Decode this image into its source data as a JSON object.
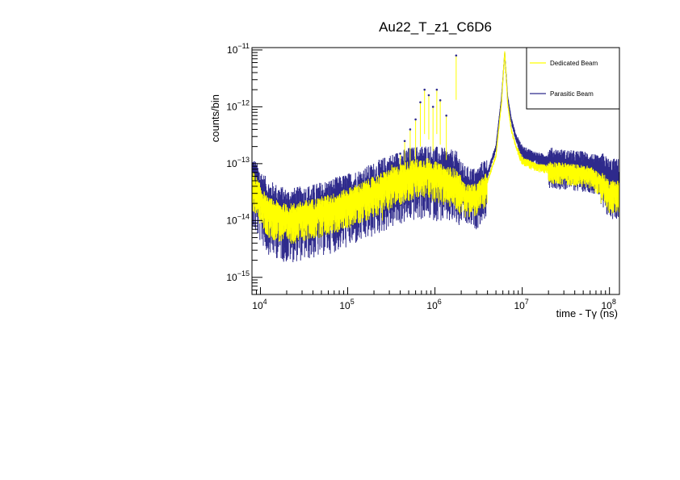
{
  "chart_data": {
    "type": "line",
    "title": "Au22_T_z1_C6D6",
    "xlabel": "time - Tγ (ns)",
    "ylabel": "counts/bin",
    "xscale": "log",
    "yscale": "log",
    "xlim": [
      8000,
      130000000
    ],
    "ylim": [
      5e-16,
      1.1e-11
    ],
    "grid": false,
    "legend_position": "top-right",
    "x_ticks": [
      {
        "value": 10000,
        "base": "10",
        "exp": "4"
      },
      {
        "value": 100000,
        "base": "10",
        "exp": "5"
      },
      {
        "value": 1000000,
        "base": "10",
        "exp": "6"
      },
      {
        "value": 10000000,
        "base": "10",
        "exp": "7"
      },
      {
        "value": 100000000,
        "base": "10",
        "exp": "8"
      }
    ],
    "y_ticks": [
      {
        "value": 1e-15,
        "base": "10",
        "exp": "−15"
      },
      {
        "value": 1e-14,
        "base": "10",
        "exp": "−14"
      },
      {
        "value": 1e-13,
        "base": "10",
        "exp": "−13"
      },
      {
        "value": 1e-12,
        "base": "10",
        "exp": "−12"
      },
      {
        "value": 1e-11,
        "base": "10",
        "exp": "−11"
      }
    ],
    "series": [
      {
        "name": "Parasitic Beam",
        "color": "#2e2a8c",
        "x": [
          8000,
          12000,
          20000,
          40000,
          80000,
          150000,
          300000,
          500000,
          800000,
          1200000,
          1750000,
          2200000,
          3000000,
          4000000,
          5000000,
          5800000,
          6300000,
          6800000,
          7500000,
          8500000,
          10000000,
          15000000,
          30000000,
          60000000,
          80000000,
          100000000
        ],
        "values": [
          6e-14,
          2.2e-14,
          1.5e-14,
          1.8e-14,
          2.5e-14,
          3.5e-14,
          6e-14,
          8e-14,
          9e-14,
          8e-14,
          7e-14,
          4.5e-14,
          4e-14,
          7e-14,
          2e-13,
          1.5e-12,
          9e-12,
          1.5e-12,
          6e-13,
          3e-13,
          1.7e-13,
          1.3e-13,
          1.1e-13,
          1e-13,
          8e-14,
          6e-14
        ]
      },
      {
        "name": "Dedicated Beam",
        "color": "#ffff00",
        "x": [
          8000,
          12000,
          20000,
          40000,
          80000,
          150000,
          300000,
          500000,
          800000,
          1200000,
          1750000,
          2200000,
          3000000,
          4000000,
          5000000,
          5800000,
          6300000,
          6800000,
          7500000,
          8500000,
          10000000,
          15000000,
          30000000,
          60000000,
          80000000,
          100000000
        ],
        "values": [
          5e-14,
          1.6e-14,
          1.2e-14,
          1.5e-14,
          2e-14,
          3e-14,
          5e-14,
          7e-14,
          8e-14,
          6e-14,
          5e-14,
          3e-14,
          3e-14,
          5e-14,
          1.4e-13,
          1.2e-12,
          9.5e-12,
          1.2e-12,
          4e-13,
          2e-13,
          1.2e-13,
          9e-14,
          8e-14,
          7e-14,
          5e-14,
          3.5e-14
        ]
      }
    ],
    "resonance_peaks": [
      {
        "x": 250000,
        "y": 6e-14
      },
      {
        "x": 320000,
        "y": 1e-13
      },
      {
        "x": 400000,
        "y": 1.5e-13
      },
      {
        "x": 450000,
        "y": 2.5e-13
      },
      {
        "x": 520000,
        "y": 4e-13
      },
      {
        "x": 600000,
        "y": 6e-13
      },
      {
        "x": 680000,
        "y": 1.2e-12
      },
      {
        "x": 760000,
        "y": 2e-12
      },
      {
        "x": 850000,
        "y": 1.6e-12
      },
      {
        "x": 950000,
        "y": 1e-12
      },
      {
        "x": 1050000,
        "y": 2e-12
      },
      {
        "x": 1150000,
        "y": 1.3e-12
      },
      {
        "x": 1350000,
        "y": 7e-13
      },
      {
        "x": 1750000,
        "y": 8e-12
      }
    ]
  }
}
